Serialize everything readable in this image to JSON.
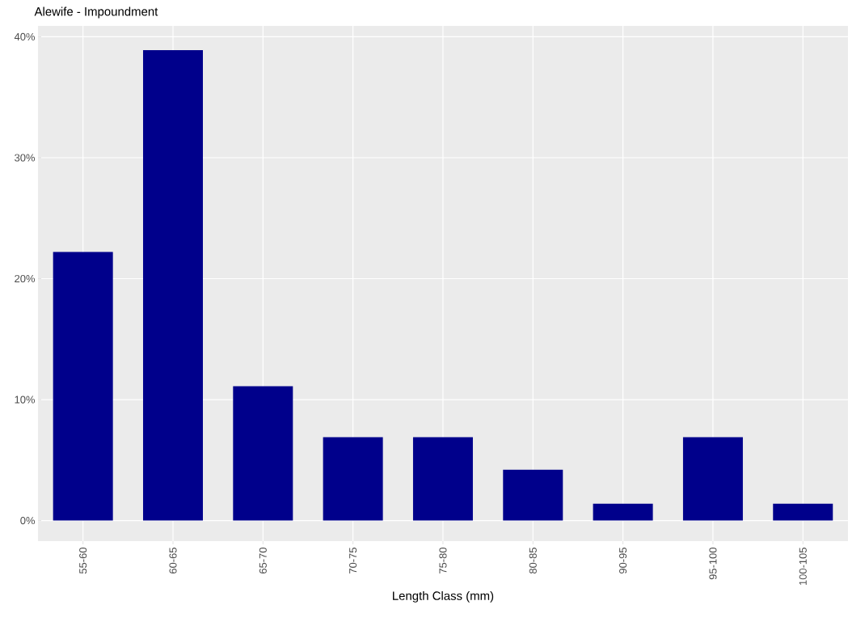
{
  "chart_data": {
    "type": "bar",
    "title": "Alewife - Impoundment",
    "xlabel": "Length Class (mm)",
    "categories": [
      "55-60",
      "60-65",
      "65-70",
      "70-75",
      "75-80",
      "80-85",
      "90-95",
      "95-100",
      "100-105"
    ],
    "values": [
      22.2,
      38.9,
      11.1,
      6.9,
      6.9,
      4.2,
      1.4,
      6.9,
      1.4
    ],
    "color": "#00008b",
    "ylim": [
      -1.7,
      40.9
    ],
    "yticks": [
      {
        "value": 0,
        "label": "0%"
      },
      {
        "value": 10,
        "label": "10%"
      },
      {
        "value": 20,
        "label": "20%"
      },
      {
        "value": 30,
        "label": "30%"
      },
      {
        "value": 40,
        "label": "40%"
      }
    ],
    "grid": true
  }
}
